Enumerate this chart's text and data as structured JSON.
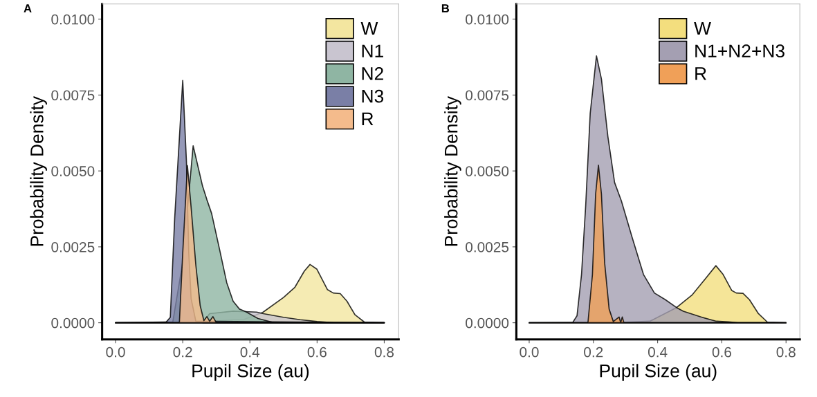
{
  "chart_data": [
    {
      "type": "area",
      "title": "A",
      "xlabel": "Pupil Size (au)",
      "ylabel": "Probability Density",
      "legend": "top right",
      "grid": false,
      "xlim": [
        -0.04,
        0.843
      ],
      "ylim": [
        -0.00055,
        0.0105
      ],
      "xticks": [
        {
          "value": 0,
          "label": "0.0"
        },
        {
          "value": 0.2,
          "label": "0.2"
        },
        {
          "value": 0.4,
          "label": "0.4"
        },
        {
          "value": 0.6,
          "label": "0.6"
        },
        {
          "value": 0.8,
          "label": "0.8"
        }
      ],
      "yticks": [
        {
          "value": 0,
          "label": "0.0000"
        },
        {
          "value": 0.0025,
          "label": "0.0025"
        },
        {
          "value": 0.005,
          "label": "0.0050"
        },
        {
          "value": 0.0075,
          "label": "0.0075"
        },
        {
          "value": 0.01,
          "label": "0.0100"
        }
      ],
      "series": [
        {
          "name": "W",
          "color": "#f3e6a0",
          "x": [
            0,
            0.3,
            0.35,
            0.383,
            0.438,
            0.5,
            0.534,
            0.562,
            0.579,
            0.599,
            0.631,
            0.648,
            0.669,
            0.689,
            0.713,
            0.741,
            0.8
          ],
          "values": [
            0,
            5e-05,
            0.0001,
            0.00011,
            0.00034,
            0.00083,
            0.00117,
            0.0017,
            0.00192,
            0.00177,
            0.00109,
            0.00098,
            0.00096,
            0.00071,
            0.00026,
            2e-05,
            0
          ]
        },
        {
          "name": "N1",
          "color": "#c9c5d0",
          "x": [
            0.26,
            0.28,
            0.35,
            0.42,
            0.44,
            0.5,
            0.55,
            0.6,
            0.65,
            0.8
          ],
          "values": [
            0,
            0.0003,
            0.00038,
            0.00035,
            0.0003,
            0.00018,
            0.0001,
            4e-05,
            0,
            0
          ]
        },
        {
          "name": "N2",
          "color": "#8fb5a3",
          "x": [
            0,
            0.17,
            0.2,
            0.231,
            0.259,
            0.272,
            0.286,
            0.309,
            0.331,
            0.35,
            0.369,
            0.388,
            0.424,
            0.472,
            0.8
          ],
          "values": [
            0,
            0,
            0.002,
            0.00583,
            0.0045,
            0.00405,
            0.0036,
            0.00245,
            0.00132,
            0.00071,
            0.00045,
            0.00036,
            0.00014,
            0,
            0
          ]
        },
        {
          "name": "N3",
          "color": "#7a7fa6",
          "x": [
            0,
            0.149,
            0.163,
            0.176,
            0.2,
            0.211,
            0.218,
            0.225,
            0.239,
            0.8
          ],
          "values": [
            0,
            0,
            0.00018,
            0.00344,
            0.00798,
            0.00533,
            0.0023,
            0.00079,
            5e-05,
            0
          ]
        },
        {
          "name": "R",
          "color": "#f4bb8c",
          "x": [
            0,
            0.19,
            0.2,
            0.214,
            0.225,
            0.239,
            0.252,
            0.263,
            0.272,
            0.28,
            0.29,
            0.3,
            0.8
          ],
          "values": [
            0,
            0,
            0.0023,
            0.00518,
            0.0038,
            0.0019,
            0.00056,
            7e-05,
            0.0002,
            5e-05,
            0.0002,
            0,
            0
          ]
        }
      ]
    },
    {
      "type": "area",
      "title": "B",
      "xlabel": "Pupil Size (au)",
      "ylabel": "Probability Density",
      "legend": "top right",
      "grid": false,
      "xlim": [
        -0.04,
        0.843
      ],
      "ylim": [
        -0.00055,
        0.0105
      ],
      "xticks": [
        {
          "value": 0,
          "label": "0.0"
        },
        {
          "value": 0.2,
          "label": "0.2"
        },
        {
          "value": 0.4,
          "label": "0.4"
        },
        {
          "value": 0.6,
          "label": "0.6"
        },
        {
          "value": 0.8,
          "label": "0.8"
        }
      ],
      "yticks": [
        {
          "value": 0,
          "label": "0.0000"
        },
        {
          "value": 0.0025,
          "label": "0.0025"
        },
        {
          "value": 0.005,
          "label": "0.0050"
        },
        {
          "value": 0.0075,
          "label": "0.0075"
        },
        {
          "value": 0.01,
          "label": "0.0100"
        }
      ],
      "series": [
        {
          "name": "W",
          "color": "#f3de7e",
          "x": [
            0,
            0.3,
            0.376,
            0.459,
            0.507,
            0.548,
            0.5815,
            0.604,
            0.631,
            0.645,
            0.666,
            0.686,
            0.714,
            0.742,
            0.8
          ],
          "values": [
            0,
            2e-05,
            5e-05,
            0.0005,
            0.00091,
            0.00144,
            0.00188,
            0.00159,
            0.00106,
            0.00098,
            0.00097,
            0.00076,
            0.0003,
            2e-05,
            0
          ]
        },
        {
          "name": "N1+N2+N3",
          "color": "#a49fb2",
          "x": [
            0,
            0.135,
            0.149,
            0.163,
            0.176,
            0.19,
            0.2095,
            0.225,
            0.245,
            0.266,
            0.287,
            0.321,
            0.356,
            0.39,
            0.424,
            0.459,
            0.48,
            0.535,
            0.583,
            0.62,
            0.65,
            0.8
          ],
          "values": [
            0,
            0,
            0.00023,
            0.00159,
            0.00386,
            0.00689,
            0.00879,
            0.00803,
            0.00614,
            0.00462,
            0.00402,
            0.0028,
            0.00159,
            0.00098,
            0.00076,
            0.0005,
            0.00038,
            0.00019,
            5e-05,
            3e-05,
            0,
            0
          ]
        },
        {
          "name": "R",
          "color": "#f0a058",
          "x": [
            0,
            0.183,
            0.197,
            0.207,
            0.2157,
            0.225,
            0.235,
            0.249,
            0.262,
            0.28,
            0.285,
            0.29,
            0.295,
            0.3,
            0.8
          ],
          "values": [
            0,
            0,
            0.00159,
            0.00424,
            0.00519,
            0.00424,
            0.00197,
            0.00045,
            4e-05,
            0.00019,
            0,
            0.00019,
            0,
            0,
            0
          ]
        }
      ]
    }
  ]
}
